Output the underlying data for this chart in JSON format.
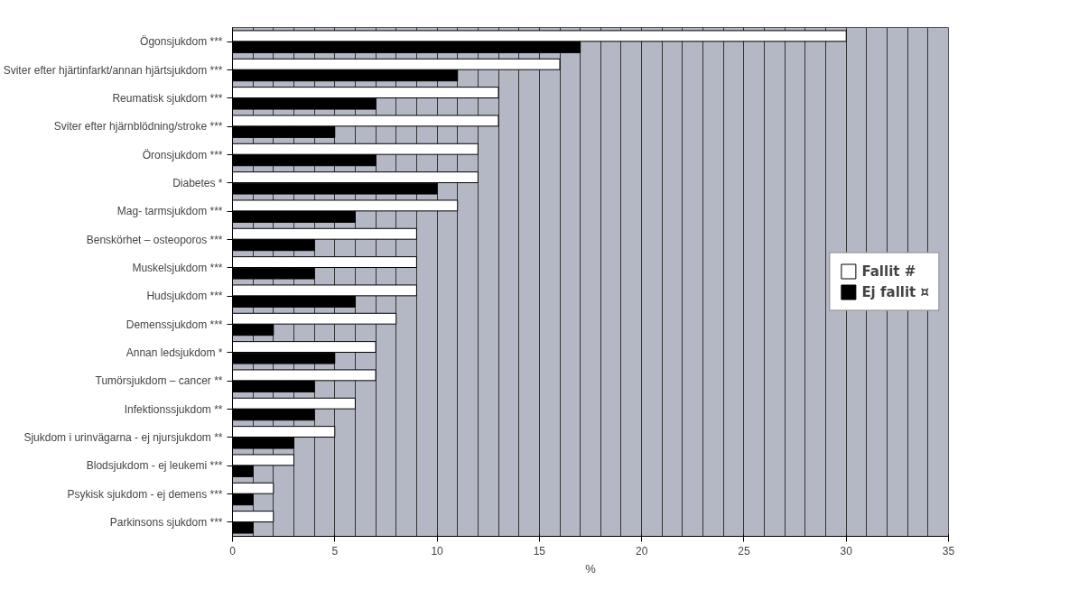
{
  "chart_data": {
    "type": "bar",
    "orientation": "horizontal",
    "xlabel": "%",
    "categories": [
      "Ögonsjukdom ***",
      "Sviter efter hjärtinfarkt/annan hjärtsjukdom ***",
      "Reumatisk sjukdom ***",
      "Sviter efter hjärnblödning/stroke ***",
      "Öronsjukdom ***",
      "Diabetes *",
      "Mag- tarmsjukdom ***",
      "Benskörhet – osteoporos ***",
      "Muskelsjukdom ***",
      "Hudsjukdom ***",
      "Demenssjukdom ***",
      "Annan ledsjukdom *",
      "Tumörsjukdom – cancer **",
      "Infektionssjukdom **",
      "Sjukdom i urinvägarna - ej njursjukdom **",
      "Blodsjukdom - ej leukemi ***",
      "Psykisk sjukdom - ej demens ***",
      "Parkinsons sjukdom ***"
    ],
    "series": [
      {
        "name": "Fallit #",
        "color": "#ffffff",
        "values": [
          30,
          16,
          13,
          13,
          12,
          12,
          11,
          9,
          9,
          9,
          8,
          7,
          7,
          6,
          5,
          3,
          2,
          2
        ]
      },
      {
        "name": "Ej fallit ¤",
        "color": "#000000",
        "values": [
          17,
          11,
          7,
          5,
          7,
          10,
          6,
          4,
          4,
          6,
          2,
          5,
          4,
          4,
          3,
          1,
          1,
          1
        ]
      }
    ],
    "xlim": [
      0,
      35
    ],
    "xticks": [
      0,
      5,
      10,
      15,
      20,
      25,
      30,
      35
    ],
    "grid": "x",
    "legend": "right"
  }
}
